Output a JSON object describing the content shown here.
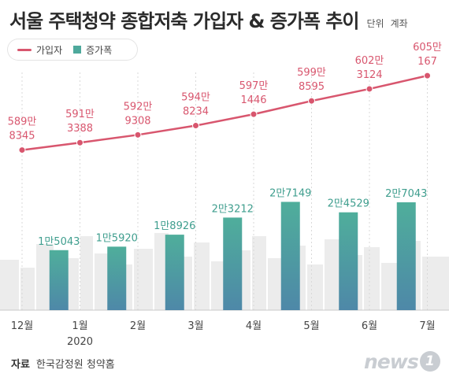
{
  "title": "서울 주택청약 종합저축 가입자 & 증가폭 추이",
  "unit_label": "단위",
  "unit_value": "계좌",
  "legend": {
    "line_label": "가입자",
    "bar_label": "증가폭"
  },
  "source_label": "자료",
  "source_value": "한국감정원 청약홈",
  "logo": {
    "text": "news",
    "mark": "1"
  },
  "colors": {
    "line": "#d8566e",
    "bar_top": "#4fae9b",
    "bar_bottom": "#4e88a8",
    "bar_label": "#3f9e8e",
    "line_label": "#d8566e"
  },
  "chart_data": {
    "type": "bar+line",
    "categories": [
      "12월",
      "1월",
      "2월",
      "3월",
      "4월",
      "5월",
      "6월",
      "7월"
    ],
    "year_label": "2020",
    "series": [
      {
        "name": "가입자",
        "type": "line",
        "values": [
          5898345,
          5913388,
          5929308,
          5948234,
          5971446,
          5998595,
          6023124,
          6050167
        ],
        "labels": [
          [
            "589만",
            "8345"
          ],
          [
            "591만",
            "3388"
          ],
          [
            "592만",
            "9308"
          ],
          [
            "594만",
            "8234"
          ],
          [
            "597만",
            "1446"
          ],
          [
            "599만",
            "8595"
          ],
          [
            "602만",
            "3124"
          ],
          [
            "605만",
            "167"
          ]
        ]
      },
      {
        "name": "증가폭",
        "type": "bar",
        "values": [
          null,
          15043,
          15920,
          18926,
          23212,
          27149,
          24529,
          27043
        ],
        "labels": [
          "",
          "1만5043",
          "1만5920",
          "1만8926",
          "2만3212",
          "2만7149",
          "2만4529",
          "2만7043"
        ]
      }
    ]
  }
}
